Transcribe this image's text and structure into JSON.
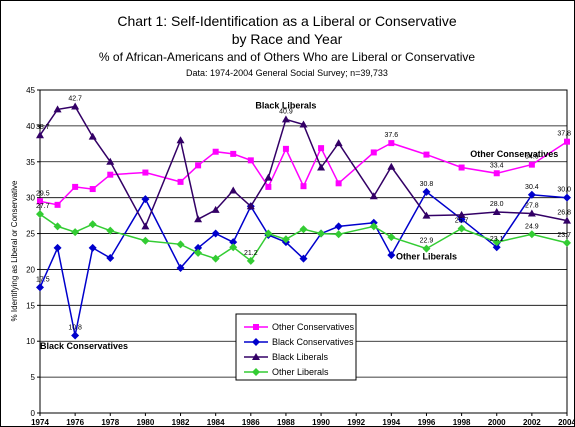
{
  "chart_data": {
    "type": "line",
    "title_line1": "Chart 1: Self-Identification as a Liberal or Conservative",
    "title_line2": "by Race and Year",
    "subtitle": "% of African-Americans and of Others Who are Liberal or Conservative",
    "source": "Data: 1974-2004 General Social Survey; n=39,733",
    "ylabel": "% Identifying as Liberal or Conservative",
    "xlabel": "",
    "ylim": [
      0,
      45
    ],
    "yticks": [
      0,
      5,
      10,
      15,
      20,
      25,
      30,
      35,
      40,
      45
    ],
    "xticks": [
      1974,
      1976,
      1978,
      1980,
      1982,
      1984,
      1986,
      1988,
      1990,
      1992,
      1994,
      1996,
      1998,
      2000,
      2002,
      2004
    ],
    "grid": "horizontal",
    "legend_position": "bottom-center",
    "series": [
      {
        "name": "Other Conservatives",
        "color": "#ff00ff",
        "marker": "square",
        "points": [
          [
            1974,
            29.5
          ],
          [
            1975,
            29.0
          ],
          [
            1976,
            31.5
          ],
          [
            1977,
            31.2
          ],
          [
            1978,
            33.2
          ],
          [
            1980,
            33.5
          ],
          [
            1982,
            32.2
          ],
          [
            1983,
            34.5
          ],
          [
            1984,
            36.4
          ],
          [
            1985,
            36.1
          ],
          [
            1986,
            35.2
          ],
          [
            1987,
            31.5
          ],
          [
            1988,
            36.8
          ],
          [
            1989,
            31.6
          ],
          [
            1990,
            36.9
          ],
          [
            1991,
            32.0
          ],
          [
            1993,
            36.3
          ],
          [
            1994,
            37.6
          ],
          [
            1996,
            36.0
          ],
          [
            1998,
            34.2
          ],
          [
            2000,
            33.4
          ],
          [
            2002,
            34.6
          ],
          [
            2004,
            37.8
          ]
        ],
        "labels": [
          {
            "x": 1974,
            "y": 29.5,
            "text": "29.5"
          },
          {
            "x": 1994,
            "y": 37.6,
            "text": "37.6"
          },
          {
            "x": 2000,
            "y": 33.4,
            "text": "33.4"
          },
          {
            "x": 2002,
            "y": 34.6,
            "text": "34.6"
          },
          {
            "x": 2004,
            "y": 37.8,
            "text": "37.8"
          }
        ]
      },
      {
        "name": "Black Conservatives",
        "color": "#0000cc",
        "marker": "diamond",
        "points": [
          [
            1974,
            17.5
          ],
          [
            1975,
            23.0
          ],
          [
            1976,
            10.8
          ],
          [
            1977,
            23.0
          ],
          [
            1978,
            21.6
          ],
          [
            1980,
            29.8
          ],
          [
            1982,
            20.2
          ],
          [
            1983,
            23.0
          ],
          [
            1984,
            25.0
          ],
          [
            1985,
            23.8
          ],
          [
            1986,
            28.8
          ],
          [
            1987,
            24.8
          ],
          [
            1988,
            23.8
          ],
          [
            1989,
            21.5
          ],
          [
            1990,
            25.0
          ],
          [
            1991,
            26.0
          ],
          [
            1993,
            26.5
          ],
          [
            1994,
            22.0
          ],
          [
            1996,
            30.8
          ],
          [
            1998,
            27.0
          ],
          [
            2000,
            23.1
          ],
          [
            2002,
            30.4
          ],
          [
            2004,
            30.0
          ]
        ],
        "labels": [
          {
            "x": 1974,
            "y": 17.5,
            "text": "17.5"
          },
          {
            "x": 1976,
            "y": 10.8,
            "text": "10.8"
          },
          {
            "x": 1996,
            "y": 30.8,
            "text": "30.8"
          },
          {
            "x": 2000,
            "y": 23.1,
            "text": "23.1"
          },
          {
            "x": 2002,
            "y": 30.4,
            "text": "30.4"
          },
          {
            "x": 2004,
            "y": 30.0,
            "text": "30.0"
          }
        ]
      },
      {
        "name": "Black Liberals",
        "color": "#330066",
        "marker": "triangle",
        "points": [
          [
            1974,
            38.7
          ],
          [
            1975,
            42.3
          ],
          [
            1976,
            42.7
          ],
          [
            1977,
            38.5
          ],
          [
            1978,
            35.0
          ],
          [
            1980,
            26.0
          ],
          [
            1982,
            38.0
          ],
          [
            1983,
            27.0
          ],
          [
            1984,
            28.3
          ],
          [
            1985,
            31.0
          ],
          [
            1986,
            28.8
          ],
          [
            1987,
            32.8
          ],
          [
            1988,
            40.9
          ],
          [
            1989,
            40.2
          ],
          [
            1990,
            34.2
          ],
          [
            1991,
            37.6
          ],
          [
            1993,
            30.2
          ],
          [
            1994,
            34.3
          ],
          [
            1996,
            27.5
          ],
          [
            1998,
            27.6
          ],
          [
            2000,
            28.0
          ],
          [
            2002,
            27.8
          ],
          [
            2004,
            26.8
          ]
        ],
        "labels": [
          {
            "x": 1974,
            "y": 38.7,
            "text": "38.7"
          },
          {
            "x": 1976,
            "y": 42.7,
            "text": "42.7"
          },
          {
            "x": 1988,
            "y": 40.9,
            "text": "40.9"
          },
          {
            "x": 2000,
            "y": 28.0,
            "text": "28.0"
          },
          {
            "x": 2002,
            "y": 27.8,
            "text": "27.8"
          },
          {
            "x": 2004,
            "y": 26.8,
            "text": "26.8"
          }
        ]
      },
      {
        "name": "Other Liberals",
        "color": "#33cc33",
        "marker": "diamond",
        "points": [
          [
            1974,
            27.7
          ],
          [
            1975,
            26.0
          ],
          [
            1976,
            25.2
          ],
          [
            1977,
            26.3
          ],
          [
            1978,
            25.4
          ],
          [
            1980,
            24.0
          ],
          [
            1982,
            23.5
          ],
          [
            1983,
            22.3
          ],
          [
            1984,
            21.5
          ],
          [
            1985,
            23.1
          ],
          [
            1986,
            21.2
          ],
          [
            1987,
            25.0
          ],
          [
            1988,
            24.2
          ],
          [
            1989,
            25.6
          ],
          [
            1990,
            25.0
          ],
          [
            1991,
            24.9
          ],
          [
            1993,
            26.0
          ],
          [
            1994,
            24.5
          ],
          [
            1996,
            22.9
          ],
          [
            1998,
            25.7
          ],
          [
            2000,
            23.8
          ],
          [
            2002,
            24.9
          ],
          [
            2004,
            23.7
          ]
        ],
        "labels": [
          {
            "x": 1974,
            "y": 27.7,
            "text": "27.7"
          },
          {
            "x": 1986,
            "y": 21.2,
            "text": "21.2"
          },
          {
            "x": 1996,
            "y": 22.9,
            "text": "22.9"
          },
          {
            "x": 1998,
            "y": 25.7,
            "text": "25.7"
          },
          {
            "x": 2002,
            "y": 24.9,
            "text": "24.9"
          },
          {
            "x": 2004,
            "y": 23.7,
            "text": "23.7"
          }
        ]
      }
    ],
    "annotations": [
      {
        "text": "Black Liberals",
        "x": 1988,
        "y": 42.4,
        "anchor": "middle"
      },
      {
        "text": "Other Conservatives",
        "x": 2001,
        "y": 35.7,
        "anchor": "middle"
      },
      {
        "text": "Other Liberals",
        "x": 1996,
        "y": 21.4,
        "anchor": "middle"
      },
      {
        "text": "Black Conservatives",
        "x": 1974,
        "y": 8.9,
        "anchor": "start"
      }
    ]
  }
}
